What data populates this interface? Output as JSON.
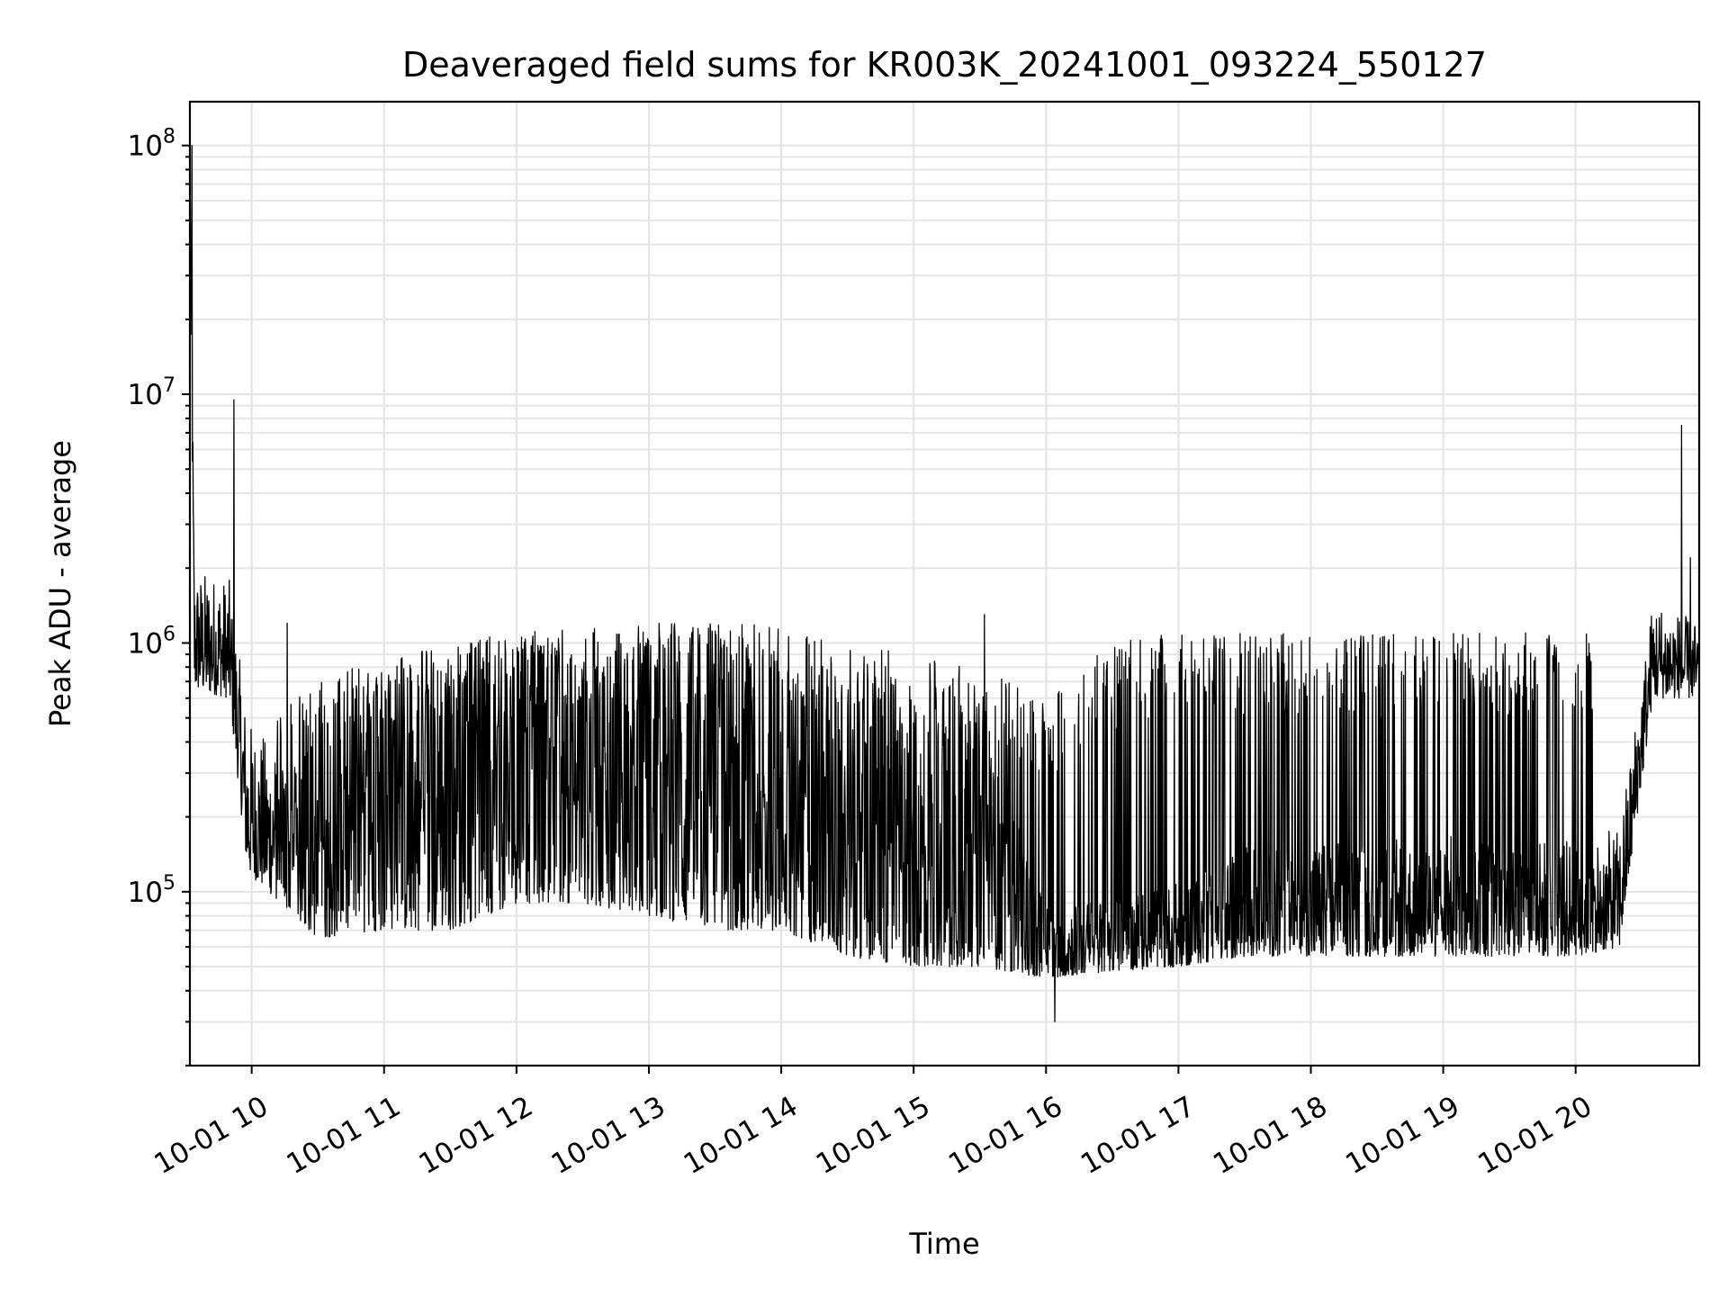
{
  "chart_data": {
    "type": "line",
    "title": "Deaveraged field sums for KR003K_20241001_093224_550127",
    "xlabel": "Time",
    "ylabel": "Peak ADU - average",
    "yscale": "log",
    "ylim": [
      20000,
      150000000
    ],
    "xlim": [
      "2024-10-01 09:32",
      "2024-10-01 20:56"
    ],
    "grid": true,
    "x_tick_labels": [
      "10-01 10",
      "10-01 11",
      "10-01 12",
      "10-01 13",
      "10-01 14",
      "10-01 15",
      "10-01 16",
      "10-01 17",
      "10-01 18",
      "10-01 19",
      "10-01 20"
    ],
    "y_tick_labels": [
      {
        "base": "10",
        "exp": "5",
        "value": 100000
      },
      {
        "base": "10",
        "exp": "6",
        "value": 1000000
      },
      {
        "base": "10",
        "exp": "7",
        "value": 10000000
      },
      {
        "base": "10",
        "exp": "8",
        "value": 100000000
      }
    ],
    "series": [
      {
        "color": "#000000",
        "baseline_profile": [
          {
            "t": "09:32",
            "low": 80000000,
            "high": 100000000
          },
          {
            "t": "09:34",
            "low": 650000,
            "high": 2000000
          },
          {
            "t": "09:50",
            "low": 600000,
            "high": 1800000
          },
          {
            "t": "09:58",
            "low": 120000,
            "high": 500000
          },
          {
            "t": "10:30",
            "low": 65000,
            "high": 250000
          },
          {
            "t": "11:00",
            "low": 70000,
            "high": 900000
          },
          {
            "t": "11:30",
            "low": 70000,
            "high": 1000000
          },
          {
            "t": "12:00",
            "low": 90000,
            "high": 1100000
          },
          {
            "t": "12:30",
            "low": 90000,
            "high": 1150000
          },
          {
            "t": "13:00",
            "low": 80000,
            "high": 1200000
          },
          {
            "t": "13:30",
            "low": 70000,
            "high": 1200000
          },
          {
            "t": "14:00",
            "low": 70000,
            "high": 900000
          },
          {
            "t": "14:30",
            "low": 55000,
            "high": 700000
          },
          {
            "t": "15:00",
            "low": 50000,
            "high": 600000
          },
          {
            "t": "15:30",
            "low": 50000,
            "high": 500000
          },
          {
            "t": "16:00",
            "low": 45000,
            "high": 90000
          },
          {
            "t": "16:30",
            "low": 48000,
            "high": 95000
          },
          {
            "t": "17:00",
            "low": 50000,
            "high": 110000
          },
          {
            "t": "17:30",
            "low": 55000,
            "high": 150000
          },
          {
            "t": "18:00",
            "low": 55000,
            "high": 160000
          },
          {
            "t": "18:30",
            "low": 55000,
            "high": 160000
          },
          {
            "t": "19:00",
            "low": 55000,
            "high": 170000
          },
          {
            "t": "19:30",
            "low": 55000,
            "high": 170000
          },
          {
            "t": "20:00",
            "low": 55000,
            "high": 160000
          },
          {
            "t": "20:20",
            "low": 60000,
            "high": 180000
          },
          {
            "t": "20:35",
            "low": 600000,
            "high": 1500000
          },
          {
            "t": "20:56",
            "low": 600000,
            "high": 1200000
          }
        ],
        "spike_envelope": [
          {
            "t": "10:10",
            "value": 500000
          },
          {
            "t": "10:30",
            "value": 700000
          },
          {
            "t": "11:00",
            "value": 900000
          },
          {
            "t": "11:30",
            "value": 1000000
          },
          {
            "t": "12:00",
            "value": 1100000
          },
          {
            "t": "12:30",
            "value": 1150000
          },
          {
            "t": "13:00",
            "value": 1200000
          },
          {
            "t": "13:30",
            "value": 1250000
          },
          {
            "t": "14:00",
            "value": 1150000
          },
          {
            "t": "14:30",
            "value": 1000000
          },
          {
            "t": "15:00",
            "value": 900000
          },
          {
            "t": "15:30",
            "value": 800000
          },
          {
            "t": "16:00",
            "value": 600000
          },
          {
            "t": "16:30",
            "value": 1000000
          },
          {
            "t": "17:00",
            "value": 1100000
          },
          {
            "t": "17:30",
            "value": 1100000
          },
          {
            "t": "18:00",
            "value": 1100000
          },
          {
            "t": "18:30",
            "value": 1100000
          },
          {
            "t": "19:00",
            "value": 1100000
          },
          {
            "t": "19:30",
            "value": 1100000
          },
          {
            "t": "20:10",
            "value": 1100000
          }
        ],
        "notable_points": [
          {
            "t": "09:33",
            "value": 100000000
          },
          {
            "t": "09:52",
            "value": 9500000
          },
          {
            "t": "10:16",
            "value": 1200000
          },
          {
            "t": "15:32",
            "value": 1300000
          },
          {
            "t": "16:04",
            "value": 30000
          },
          {
            "t": "20:48",
            "value": 7500000
          },
          {
            "t": "20:52",
            "value": 2200000
          }
        ]
      }
    ]
  }
}
